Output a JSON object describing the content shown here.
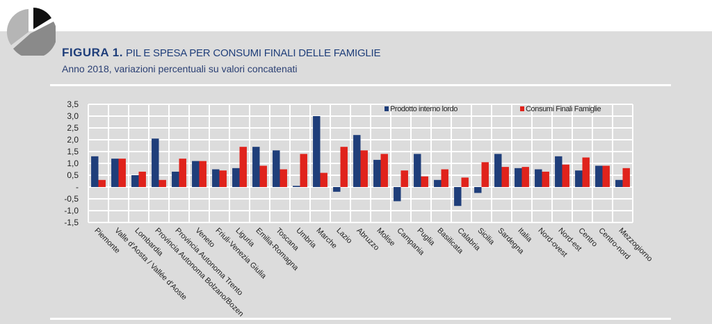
{
  "header": {
    "figure_label": "FIGURA 1.",
    "title": "PIL E SPESA PER CONSUMI FINALI DELLE FAMIGLIE",
    "subtitle": "Anno 2018, variazioni percentuali su valori concatenati"
  },
  "colors": {
    "pil": "#1f3e7a",
    "consumi": "#e0231c",
    "panel": "#dcdcdc"
  },
  "chart_data": {
    "type": "bar",
    "title": "",
    "xlabel": "",
    "ylabel": "",
    "ylim": [
      -1.5,
      3.5
    ],
    "yticks": [
      "3,5",
      "3,0",
      "2,5",
      "2,0",
      "1,5",
      "1,0",
      "0,5",
      "-",
      "-0,5",
      "-1,0",
      "-1,5"
    ],
    "grid": true,
    "legend_position": "top",
    "categories": [
      "Piemonte",
      "Valle d'Aosta / Vallée d'Aoste",
      "Lombardia",
      "Provincia Autonoma Bolzano/Bozen",
      "Provincia Autonoma Trento",
      "Veneto",
      "Friuli-Venezia Giulia",
      "Liguria",
      "Emilia-Romagna",
      "Toscana",
      "Umbria",
      "Marche",
      "Lazio",
      "Abruzzo",
      "Molise",
      "Campania",
      "Puglia",
      "Basilicata",
      "Calabria",
      "Sicilia",
      "Sardegna",
      "Italia",
      "Nord-ovest",
      "Nord-est",
      "Centro",
      "Centro-nord",
      "Mezzogiorno"
    ],
    "series": [
      {
        "name": "Prodotto interno lordo",
        "color": "#1f3e7a",
        "values": [
          1.3,
          1.2,
          0.5,
          2.05,
          0.65,
          1.1,
          0.75,
          0.8,
          1.7,
          1.55,
          0.05,
          3.0,
          -0.2,
          2.2,
          1.15,
          -0.6,
          1.4,
          0.3,
          -0.8,
          -0.25,
          1.4,
          0.8,
          0.75,
          1.3,
          0.7,
          0.9,
          0.3
        ]
      },
      {
        "name": "Consumi Finali Famiglie",
        "color": "#e0231c",
        "values": [
          0.3,
          1.2,
          0.65,
          0.3,
          1.2,
          1.1,
          0.7,
          1.7,
          0.9,
          0.75,
          1.4,
          0.6,
          1.7,
          1.55,
          1.4,
          0.7,
          0.45,
          0.75,
          0.4,
          1.05,
          0.85,
          0.85,
          0.65,
          0.95,
          1.25,
          0.9,
          0.8
        ]
      }
    ]
  }
}
